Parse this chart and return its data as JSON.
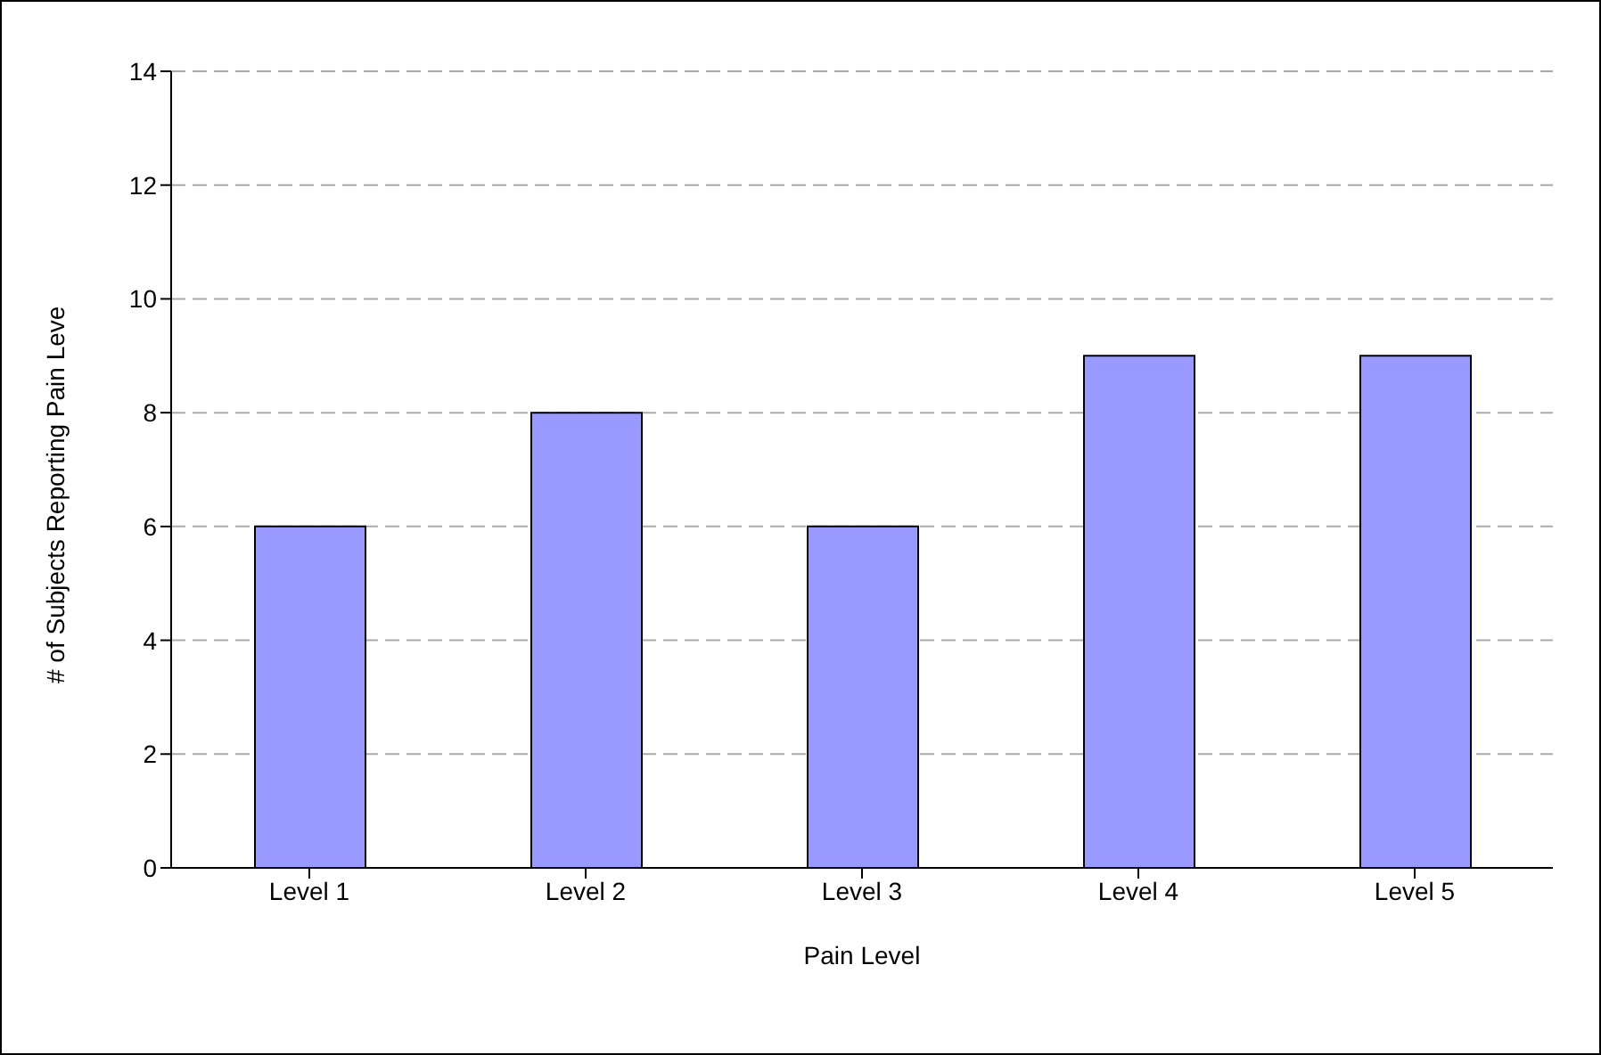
{
  "chart_data": {
    "type": "bar",
    "xlabel": "Pain Level",
    "ylabel": "# of Subjects Reporting Pain Leve",
    "categories": [
      "Level 1",
      "Level 2",
      "Level 3",
      "Level 4",
      "Level 5"
    ],
    "values": [
      6,
      8,
      6,
      9,
      9
    ],
    "color": "#9999ff",
    "ylim": [
      0,
      14
    ],
    "yticks": [
      0,
      2,
      4,
      6,
      8,
      10,
      12,
      14
    ],
    "grid": "y",
    "legend": false
  }
}
